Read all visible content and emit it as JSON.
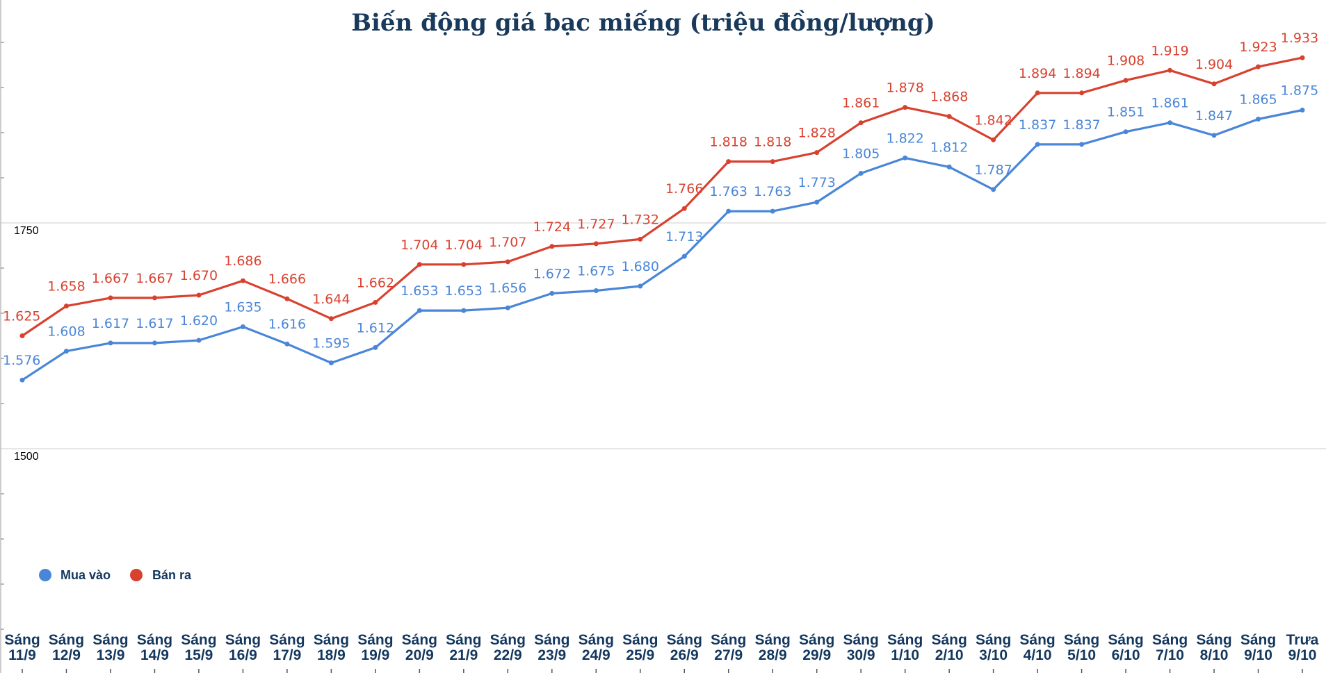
{
  "chart_data": {
    "type": "line",
    "title": "Biến động giá bạc miếng (triệu đồng/lượng)",
    "xlabel": "",
    "ylabel": "",
    "ylim": [
      1250,
      1995
    ],
    "y_ticks": [
      {
        "value": 1750,
        "label": "1750"
      },
      {
        "value": 1500,
        "label": "1500"
      }
    ],
    "grid": true,
    "legend_position": "bottom-left",
    "categories": [
      [
        "Sáng",
        "11/9"
      ],
      [
        "Sáng",
        "12/9"
      ],
      [
        "Sáng",
        "13/9"
      ],
      [
        "Sáng",
        "14/9"
      ],
      [
        "Sáng",
        "15/9"
      ],
      [
        "Sáng",
        "16/9"
      ],
      [
        "Sáng",
        "17/9"
      ],
      [
        "Sáng",
        "18/9"
      ],
      [
        "Sáng",
        "19/9"
      ],
      [
        "Sáng",
        "20/9"
      ],
      [
        "Sáng",
        "21/9"
      ],
      [
        "Sáng",
        "22/9"
      ],
      [
        "Sáng",
        "23/9"
      ],
      [
        "Sáng",
        "24/9"
      ],
      [
        "Sáng",
        "25/9"
      ],
      [
        "Sáng",
        "26/9"
      ],
      [
        "Sáng",
        "27/9"
      ],
      [
        "Sáng",
        "28/9"
      ],
      [
        "Sáng",
        "29/9"
      ],
      [
        "Sáng",
        "30/9"
      ],
      [
        "Sáng",
        "1/10"
      ],
      [
        "Sáng",
        "2/10"
      ],
      [
        "Sáng",
        "3/10"
      ],
      [
        "Sáng",
        "4/10"
      ],
      [
        "Sáng",
        "5/10"
      ],
      [
        "Sáng",
        "6/10"
      ],
      [
        "Sáng",
        "7/10"
      ],
      [
        "Sáng",
        "8/10"
      ],
      [
        "Sáng",
        "9/10"
      ],
      [
        "Trưa",
        "9/10"
      ]
    ],
    "series": [
      {
        "name": "Mua vào",
        "color": "#4a86d8",
        "values": [
          1576,
          1608,
          1617,
          1617,
          1620,
          1635,
          1616,
          1595,
          1612,
          1653,
          1653,
          1656,
          1672,
          1675,
          1680,
          1713,
          1763,
          1763,
          1773,
          1805,
          1822,
          1812,
          1787,
          1837,
          1837,
          1851,
          1861,
          1847,
          1865,
          1875
        ],
        "labels": [
          "1.576",
          "1.608",
          "1.617",
          "1.617",
          "1.620",
          "1.635",
          "1.616",
          "1.595",
          "1.612",
          "1.653",
          "1.653",
          "1.656",
          "1.672",
          "1.675",
          "1.680",
          "1.713",
          "1.763",
          "1.763",
          "1.773",
          "1.805",
          "1.822",
          "1.812",
          "1.787",
          "1.837",
          "1.837",
          "1.851",
          "1.861",
          "1.847",
          "1.865",
          "1.875"
        ]
      },
      {
        "name": "Bán ra",
        "color": "#d9412f",
        "values": [
          1625,
          1658,
          1667,
          1667,
          1670,
          1686,
          1666,
          1644,
          1662,
          1704,
          1704,
          1707,
          1724,
          1727,
          1732,
          1766,
          1818,
          1818,
          1828,
          1861,
          1878,
          1868,
          1842,
          1894,
          1894,
          1908,
          1919,
          1904,
          1923,
          1933
        ],
        "labels": [
          "1.625",
          "1.658",
          "1.667",
          "1.667",
          "1.670",
          "1.686",
          "1.666",
          "1.644",
          "1.662",
          "1.704",
          "1.704",
          "1.707",
          "1.724",
          "1.727",
          "1.732",
          "1.766",
          "1.818",
          "1.818",
          "1.828",
          "1.861",
          "1.878",
          "1.868",
          "1.842",
          "1.894",
          "1.894",
          "1.908",
          "1.919",
          "1.904",
          "1.923",
          "1.933"
        ]
      }
    ]
  }
}
